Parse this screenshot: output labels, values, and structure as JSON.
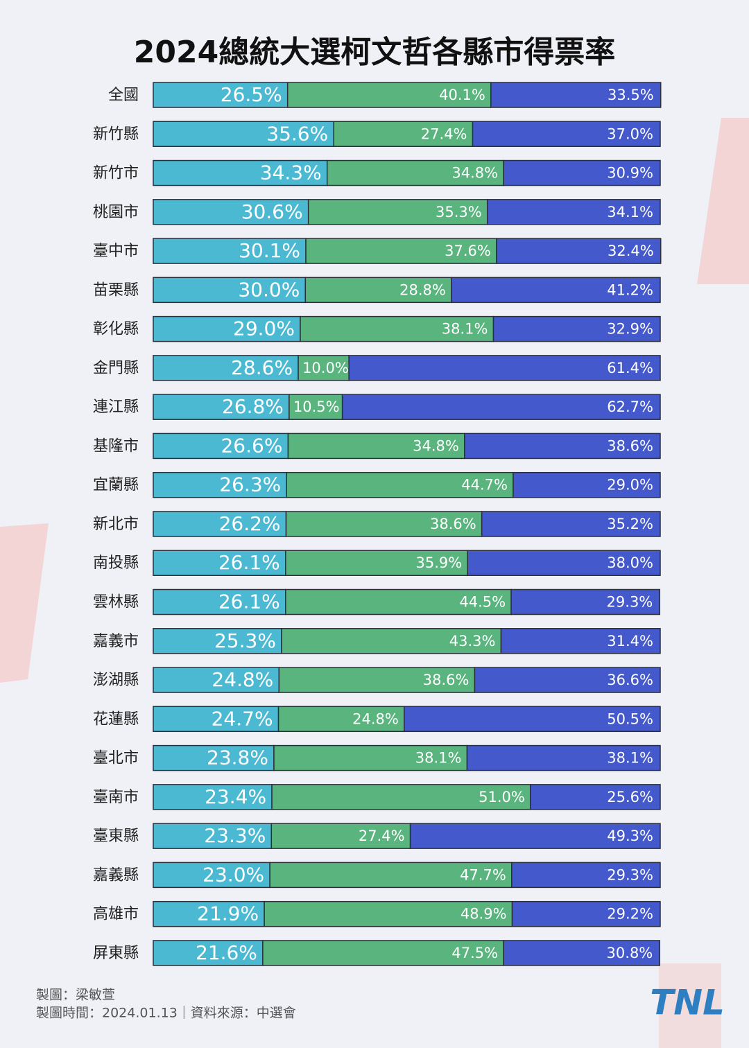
{
  "chart_data": {
    "type": "stacked-bar",
    "title": "2024總統大選柯文哲各縣市得票率",
    "categories": [
      "全國",
      "新竹縣",
      "新竹市",
      "桃園市",
      "臺中市",
      "苗栗縣",
      "彰化縣",
      "金門縣",
      "連江縣",
      "基隆市",
      "宜蘭縣",
      "新北市",
      "南投縣",
      "雲林縣",
      "嘉義市",
      "澎湖縣",
      "花蓮縣",
      "臺北市",
      "臺南市",
      "臺東縣",
      "嘉義縣",
      "高雄市",
      "屏東縣"
    ],
    "xlim": [
      0,
      100
    ],
    "series": [
      {
        "color": "#4bb9d2",
        "values": [
          26.5,
          35.6,
          34.3,
          30.6,
          30.1,
          30.0,
          29.0,
          28.6,
          26.8,
          26.6,
          26.3,
          26.2,
          26.1,
          26.1,
          25.3,
          24.8,
          24.7,
          23.8,
          23.4,
          23.3,
          23.0,
          21.9,
          21.6
        ],
        "value_labels": [
          "26.5%",
          "35.6%",
          "34.3%",
          "30.6%",
          "30.1%",
          "30.0%",
          "29.0%",
          "28.6%",
          "26.8%",
          "26.6%",
          "26.3%",
          "26.2%",
          "26.1%",
          "26.1%",
          "25.3%",
          "24.8%",
          "24.7%",
          "23.8%",
          "23.4%",
          "23.3%",
          "23.0%",
          "21.9%",
          "21.6%"
        ]
      },
      {
        "color": "#59b47e",
        "values": [
          40.1,
          27.4,
          34.8,
          35.3,
          37.6,
          28.8,
          38.1,
          10.0,
          10.5,
          34.8,
          44.7,
          38.6,
          35.9,
          44.5,
          43.3,
          38.6,
          24.8,
          38.1,
          51.0,
          27.4,
          47.7,
          48.9,
          47.5
        ],
        "value_labels": [
          "40.1%",
          "27.4%",
          "34.8%",
          "35.3%",
          "37.6%",
          "28.8%",
          "38.1%",
          "10.0%",
          "10.5%",
          "34.8%",
          "44.7%",
          "38.6%",
          "35.9%",
          "44.5%",
          "43.3%",
          "38.6%",
          "24.8%",
          "38.1%",
          "51.0%",
          "27.4%",
          "47.7%",
          "48.9%",
          "47.5%"
        ]
      },
      {
        "color": "#4459cb",
        "values": [
          33.5,
          37.0,
          30.9,
          34.1,
          32.4,
          41.2,
          32.9,
          61.4,
          62.7,
          38.6,
          29.0,
          35.2,
          38.0,
          29.3,
          31.4,
          36.6,
          50.5,
          38.1,
          25.6,
          49.3,
          29.3,
          29.2,
          30.8
        ],
        "value_labels": [
          "33.5%",
          "37.0%",
          "30.9%",
          "34.1%",
          "32.4%",
          "41.2%",
          "32.9%",
          "61.4%",
          "62.7%",
          "38.6%",
          "29.0%",
          "35.2%",
          "38.0%",
          "29.3%",
          "31.4%",
          "36.6%",
          "50.5%",
          "38.1%",
          "25.6%",
          "49.3%",
          "29.3%",
          "29.2%",
          "30.8%"
        ]
      }
    ],
    "credit": "製圖：梁敏萱",
    "footnote": "製圖時間：2024.01.13｜資料來源：中選會",
    "logo": "TNL"
  }
}
